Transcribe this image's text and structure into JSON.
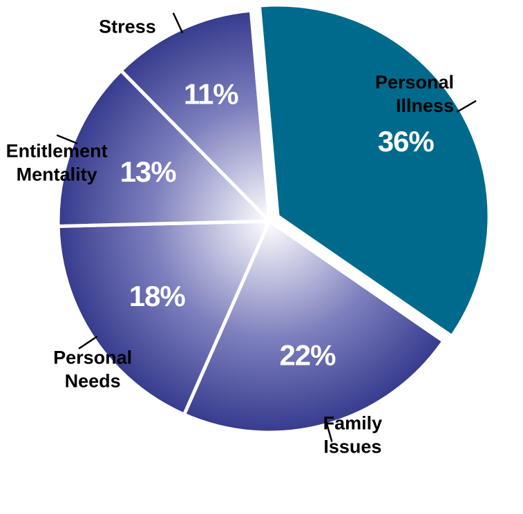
{
  "chart_data": {
    "type": "pie",
    "slices": [
      {
        "label": [
          "Personal",
          "Illness"
        ],
        "value": 36,
        "value_label": "36%",
        "color": "#006a8c",
        "exploded": true
      },
      {
        "label": [
          "Family",
          "Issues"
        ],
        "value": 22,
        "value_label": "22%",
        "color": "#34398c"
      },
      {
        "label": [
          "Personal",
          "Needs"
        ],
        "value": 18,
        "value_label": "18%",
        "color": "#34398c"
      },
      {
        "label": [
          "Entitlement",
          "Mentality"
        ],
        "value": 13,
        "value_label": "13%",
        "color": "#34398c"
      },
      {
        "label": [
          "Stress"
        ],
        "value": 11,
        "value_label": "11%",
        "color": "#34398c"
      }
    ],
    "gradient_center_color": "#ffffff",
    "title": "",
    "legend": "none"
  }
}
